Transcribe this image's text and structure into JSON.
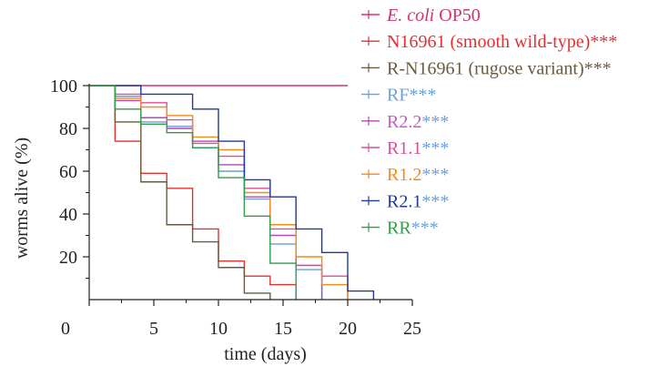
{
  "chart_data": {
    "type": "line",
    "xlabel": "time (days)",
    "ylabel": "worms alive (%)",
    "xlim": [
      0,
      25
    ],
    "ylim": [
      0,
      100
    ],
    "xticks": [
      0,
      5,
      10,
      15,
      20,
      25
    ],
    "yticks": [
      20,
      40,
      60,
      80,
      100
    ],
    "step": true,
    "grid": false,
    "legend_position": "top-right",
    "series": [
      {
        "name_parts": [
          {
            "text": "E. coli",
            "italic": true
          },
          {
            "text": " OP50"
          }
        ],
        "name_color": "#d6336c",
        "color": "#d6336c",
        "x": [
          0,
          2,
          4,
          6,
          8,
          10,
          12,
          14,
          16,
          18,
          20
        ],
        "y": [
          100,
          100,
          100,
          100,
          100,
          100,
          100,
          100,
          100,
          100,
          100
        ]
      },
      {
        "name": "N16961 (smooth wild-type)***",
        "name_color": "#e03131",
        "color": "#e03131",
        "x": [
          0,
          2,
          4,
          6,
          8,
          10,
          12,
          14,
          16
        ],
        "y": [
          100,
          74,
          59,
          52,
          33,
          18,
          11,
          7,
          0
        ]
      },
      {
        "name": "R-N16961 (rugose variant)***",
        "name_color": "#6b5a3e",
        "color": "#6b5a3e",
        "x": [
          0,
          2,
          4,
          6,
          8,
          10,
          12,
          14
        ],
        "y": [
          100,
          83,
          55,
          35,
          27,
          15,
          3,
          0
        ]
      },
      {
        "name": "RF",
        "name_color": "#6a9fd8",
        "color": "#6a9fd8",
        "x": [
          0,
          2,
          4,
          6,
          8,
          10,
          12,
          14,
          16,
          18
        ],
        "y": [
          100,
          95,
          83,
          81,
          71,
          60,
          47,
          26,
          14,
          0
        ]
      },
      {
        "name": "R2.2",
        "name_color": "#c45bc4",
        "color": "#b048b8",
        "x": [
          0,
          2,
          4,
          6,
          8,
          10,
          12,
          14,
          16,
          18
        ],
        "y": [
          100,
          93,
          85,
          80,
          74,
          63,
          48,
          30,
          16,
          0
        ]
      },
      {
        "name": "R1.1",
        "name_color": "#d6519a",
        "color": "#d6519a",
        "x": [
          0,
          2,
          4,
          6,
          8,
          10,
          12,
          14,
          16,
          18,
          20
        ],
        "y": [
          100,
          96,
          92,
          84,
          73,
          67,
          52,
          33,
          16,
          11,
          0
        ]
      },
      {
        "name": "R1.2",
        "name_color": "#f08c1a",
        "color": "#f08c1a",
        "x": [
          0,
          2,
          4,
          6,
          8,
          10,
          12,
          14,
          16,
          18,
          20
        ],
        "y": [
          100,
          94,
          90,
          86,
          76,
          70,
          50,
          35,
          20,
          7,
          0
        ]
      },
      {
        "name": "R2.1",
        "name_color": "#1f3a9a",
        "color": "#1f3a9a",
        "x": [
          0,
          2,
          4,
          6,
          8,
          10,
          12,
          14,
          16,
          18,
          20,
          22
        ],
        "y": [
          100,
          100,
          96,
          96,
          89,
          74,
          56,
          48,
          33,
          22,
          4,
          0
        ]
      },
      {
        "name": "RR",
        "name_color": "#2f9e44",
        "color": "#2f9e44",
        "x": [
          0,
          2,
          4,
          6,
          8,
          10,
          12,
          14,
          16
        ],
        "y": [
          100,
          89,
          82,
          78,
          71,
          57,
          39,
          17,
          0
        ]
      }
    ],
    "significance_marker": "***",
    "significance_color": "#6a9fd8"
  }
}
